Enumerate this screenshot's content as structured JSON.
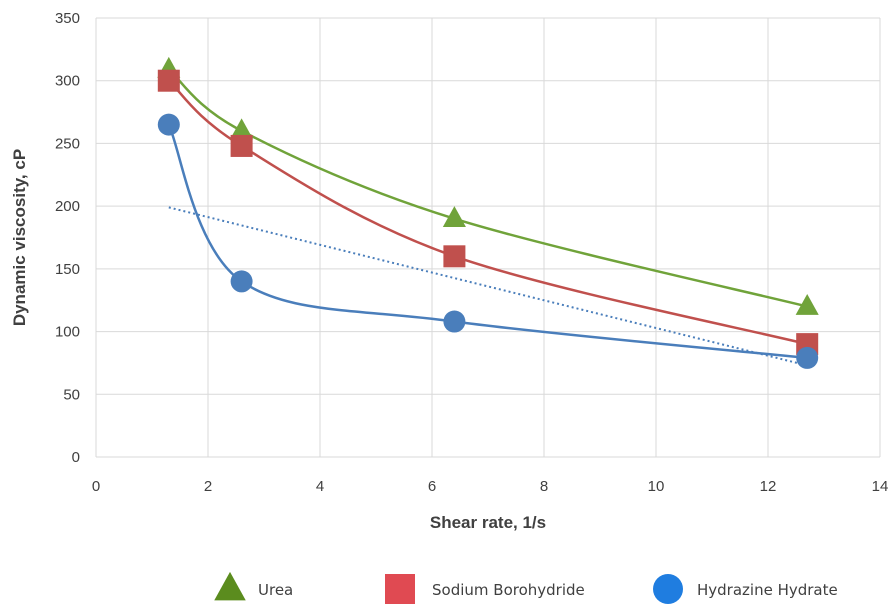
{
  "chart_data": {
    "type": "scatter",
    "xlabel": "Shear rate, 1/s",
    "ylabel": "Dynamic viscosity, cP",
    "xlim": [
      0,
      14
    ],
    "ylim": [
      0,
      350
    ],
    "xticks": [
      "0",
      "2",
      "4",
      "6",
      "8",
      "10",
      "12",
      "14"
    ],
    "yticks": [
      "0",
      "50",
      "100",
      "150",
      "200",
      "250",
      "300",
      "350"
    ],
    "grid": true,
    "legend_position": "bottom",
    "series": [
      {
        "name": "Urea",
        "color": "#70a33a",
        "marker": "triangle",
        "x": [
          1.3,
          2.6,
          6.4,
          12.7
        ],
        "y": [
          309,
          260,
          190,
          120
        ]
      },
      {
        "name": "Sodium Borohydride",
        "color": "#c0504d",
        "marker": "square",
        "x": [
          1.3,
          2.6,
          6.4,
          12.7
        ],
        "y": [
          300,
          248,
          160,
          90
        ]
      },
      {
        "name": "Hydrazine Hydrate",
        "color": "#4a7ebb",
        "marker": "circle",
        "x": [
          1.3,
          2.6,
          6.4,
          12.7
        ],
        "y": [
          265,
          140,
          108,
          79
        ]
      }
    ],
    "trendline": {
      "series": "Hydrazine Hydrate",
      "style": "dotted",
      "color": "#4a7ebb",
      "x": [
        1.3,
        12.7
      ],
      "y": [
        199,
        73
      ]
    }
  },
  "legend": {
    "items": [
      {
        "label": "Urea",
        "color": "#5b8c1e",
        "marker": "triangle"
      },
      {
        "label": "Sodium Borohydride",
        "color": "#e04a52",
        "marker": "square"
      },
      {
        "label": "Hydrazine Hydrate",
        "color": "#1f7de0",
        "marker": "circle"
      }
    ]
  }
}
